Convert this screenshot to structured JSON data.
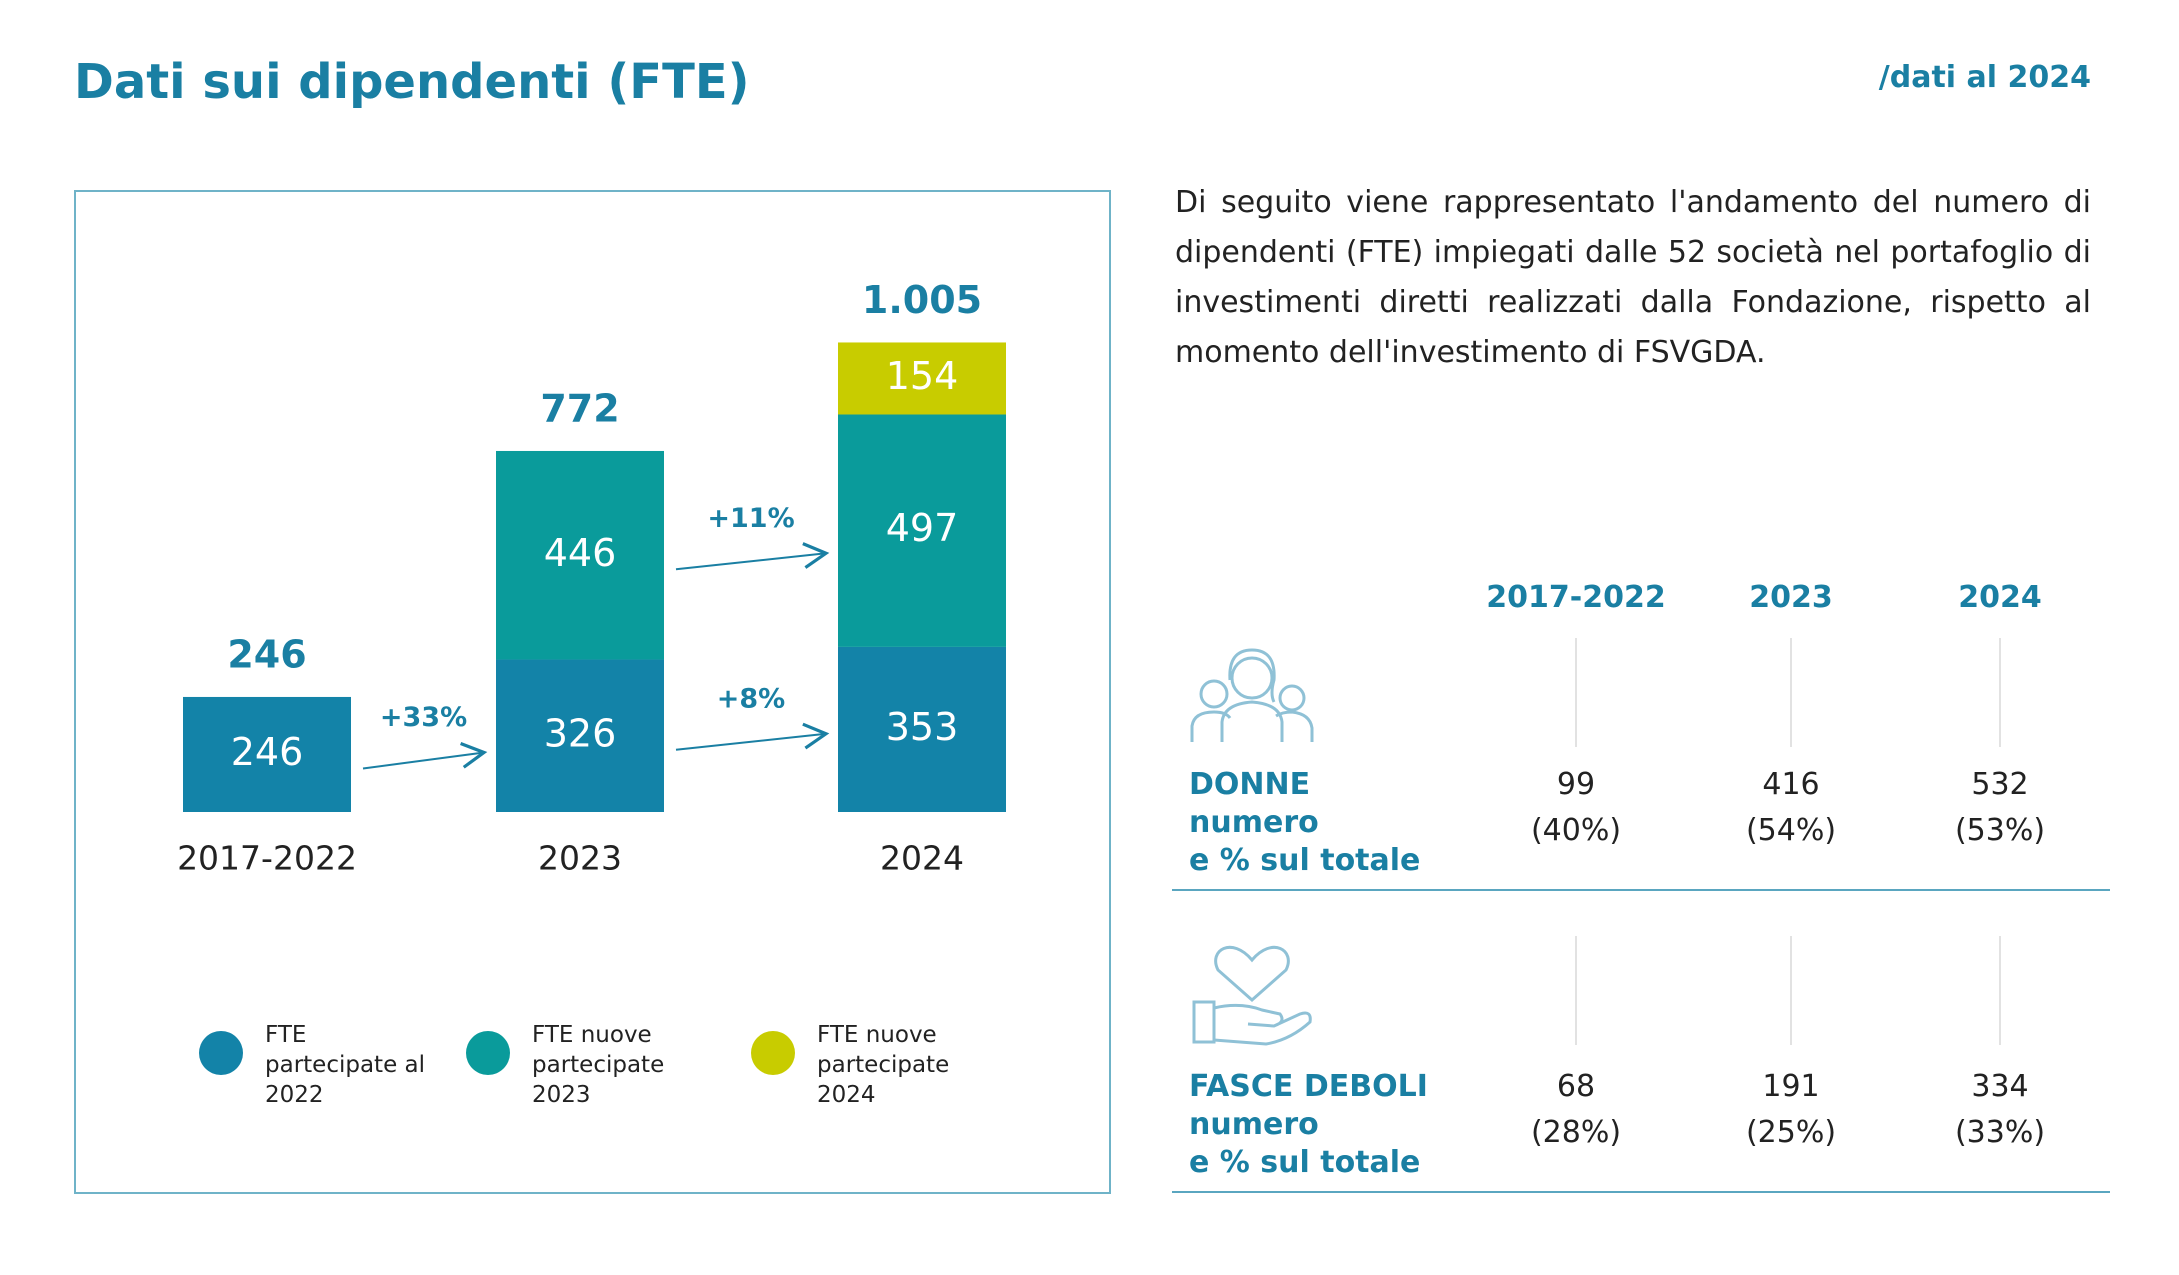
{
  "header": {
    "title": "Dati sui dipendenti (FTE)",
    "note": "/dati al 2024"
  },
  "chart_data": {
    "type": "stacked-bar",
    "categories": [
      "2017-2022",
      "2023",
      "2024"
    ],
    "series": [
      {
        "name": "FTE partecipate al 2022",
        "color": "#1383a8",
        "values": [
          246,
          326,
          353
        ]
      },
      {
        "name": "FTE nuove partecipate 2023",
        "color": "#0a9b9b",
        "values": [
          null,
          446,
          497
        ]
      },
      {
        "name": "FTE nuove partecipate 2024",
        "color": "#c8cc00",
        "values": [
          null,
          null,
          154
        ]
      }
    ],
    "totals": [
      246,
      772,
      {
        "value": 1005,
        "label": "1.005"
      }
    ],
    "annotations": [
      "+33%",
      "+8%",
      "+11%"
    ]
  },
  "text": "Di seguito viene rappresentato l'andamento del numero di dipendenti (FTE) impiegati dalle 52 società nel portafoglio di investimenti diretti realizzati dalla Fondazione, rispetto al momento dell'investimento di FSVGDA.",
  "table": {
    "columns": [
      "2017-2022",
      "2023",
      "2024"
    ],
    "rows": [
      {
        "label": [
          "DONNE",
          "numero",
          "e % sul totale"
        ],
        "cells": [
          [
            99,
            "(40%)"
          ],
          [
            416,
            "(54%)"
          ],
          [
            532,
            "(53%)"
          ]
        ]
      },
      {
        "label": [
          "FASCE DEBOLI",
          "numero",
          "e % sul totale"
        ],
        "cells": [
          [
            68,
            "(28%)"
          ],
          [
            191,
            "(25%)"
          ],
          [
            334,
            "(33%)"
          ]
        ]
      }
    ]
  }
}
